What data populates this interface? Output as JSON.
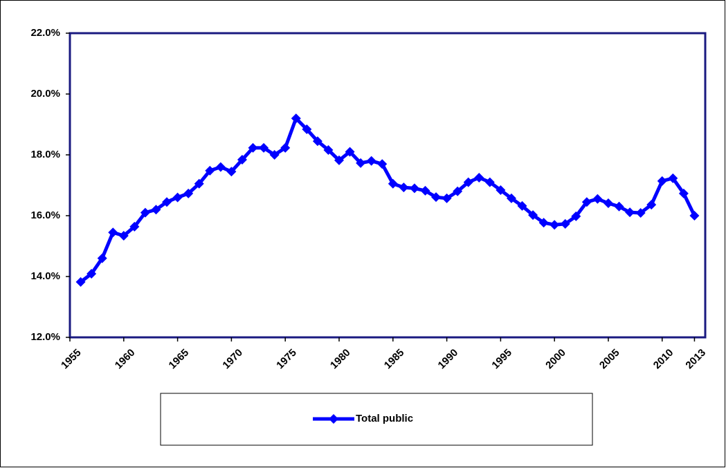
{
  "chart_data": {
    "type": "line",
    "x": [
      1956,
      1957,
      1958,
      1959,
      1960,
      1961,
      1962,
      1963,
      1964,
      1965,
      1966,
      1967,
      1968,
      1969,
      1970,
      1971,
      1972,
      1973,
      1974,
      1975,
      1976,
      1977,
      1978,
      1979,
      1980,
      1981,
      1982,
      1983,
      1984,
      1985,
      1986,
      1987,
      1988,
      1989,
      1990,
      1991,
      1992,
      1993,
      1994,
      1995,
      1996,
      1997,
      1998,
      1999,
      2000,
      2001,
      2002,
      2003,
      2004,
      2005,
      2006,
      2007,
      2008,
      2009,
      2010,
      2011,
      2012,
      2013
    ],
    "series": [
      {
        "name": "Total public",
        "color": "#0000ff",
        "values": [
          13.82,
          14.09,
          14.6,
          15.45,
          15.34,
          15.64,
          16.1,
          16.2,
          16.45,
          16.6,
          16.73,
          17.05,
          17.48,
          17.6,
          17.45,
          17.84,
          18.23,
          18.23,
          18.0,
          18.23,
          19.2,
          18.84,
          18.45,
          18.16,
          17.82,
          18.1,
          17.73,
          17.8,
          17.7,
          17.05,
          16.93,
          16.9,
          16.82,
          16.61,
          16.57,
          16.8,
          17.1,
          17.25,
          17.1,
          16.84,
          16.57,
          16.32,
          16.02,
          15.77,
          15.7,
          15.73,
          15.98,
          16.45,
          16.55,
          16.41,
          16.3,
          16.11,
          16.09,
          16.36,
          17.14,
          17.23,
          16.73,
          16.0
        ]
      }
    ],
    "xlim": [
      1955,
      2014
    ],
    "xticks": [
      1955,
      1960,
      1965,
      1970,
      1975,
      1980,
      1985,
      1990,
      1995,
      2000,
      2005,
      2010,
      2013
    ],
    "ylim": [
      12,
      22
    ],
    "yticks": [
      {
        "value": 12,
        "label": "12.0%"
      },
      {
        "value": 14,
        "label": "14.0%"
      },
      {
        "value": 16,
        "label": "16.0%"
      },
      {
        "value": 18,
        "label": "18.0%"
      },
      {
        "value": 20,
        "label": "20.0%"
      },
      {
        "value": 22,
        "label": "22.0%"
      }
    ]
  }
}
